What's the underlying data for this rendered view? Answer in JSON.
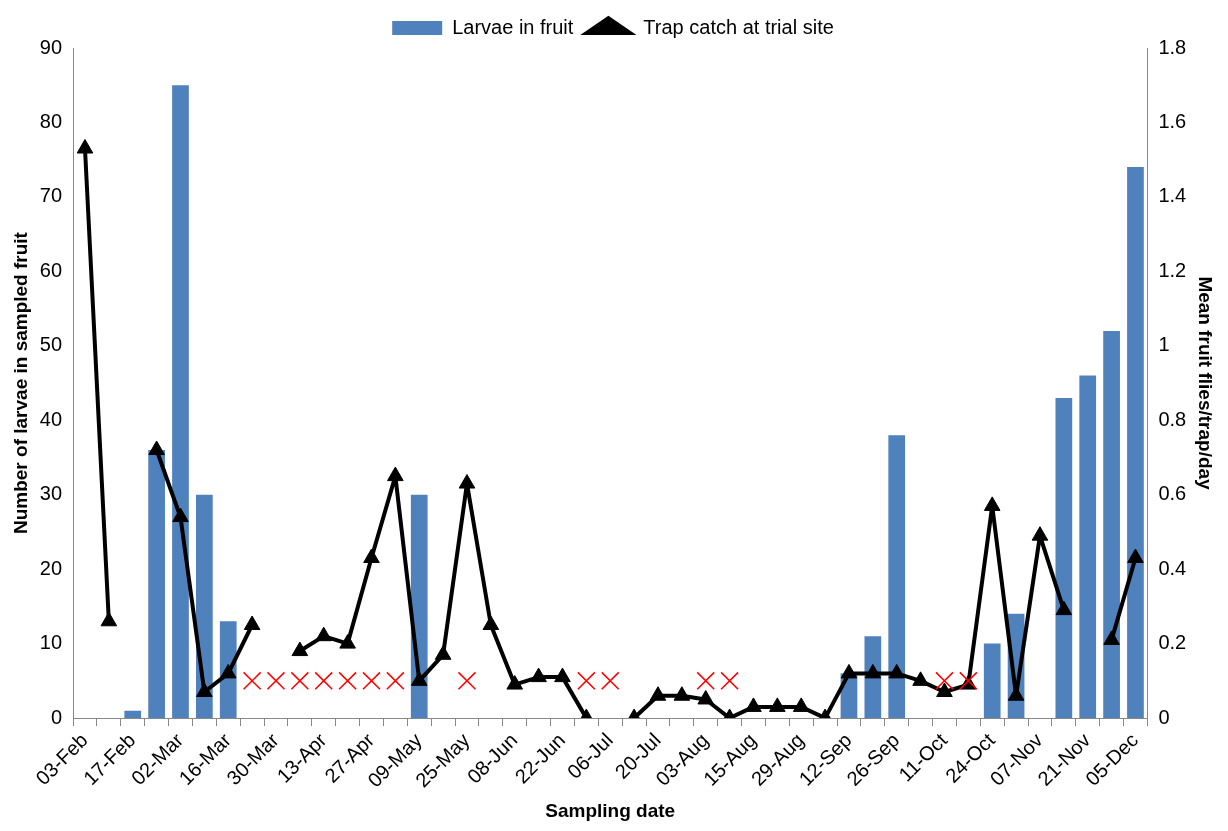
{
  "chart_data": {
    "type": "bar",
    "xlabel": "Sampling date",
    "ylabel": "Number of larvae in sampled fruit",
    "y2label": "Mean fruit flies/trap/day",
    "categories": [
      "03-Feb",
      null,
      "17-Feb",
      null,
      "02-Mar",
      null,
      "16-Mar",
      null,
      "30-Mar",
      null,
      "13-Apr",
      null,
      "27-Apr",
      null,
      "09-May",
      null,
      "25-May",
      null,
      "08-Jun",
      null,
      "22-Jun",
      null,
      "06-Jul",
      null,
      "20-Jul",
      null,
      "03-Aug",
      null,
      "15-Aug",
      null,
      "29-Aug",
      null,
      "12-Sep",
      null,
      "26-Sep",
      null,
      "11-Oct",
      null,
      "24-Oct",
      null,
      "07-Nov",
      null,
      "21-Nov",
      null,
      "05-Dec"
    ],
    "series": [
      {
        "name": "Larvae in fruit",
        "color": "#4f81bd",
        "values": [
          null,
          null,
          1,
          36,
          85,
          30,
          13,
          null,
          null,
          null,
          null,
          null,
          null,
          null,
          30,
          null,
          null,
          null,
          null,
          null,
          null,
          null,
          null,
          null,
          null,
          null,
          null,
          null,
          null,
          null,
          null,
          null,
          6,
          11,
          38,
          null,
          null,
          null,
          10,
          14,
          null,
          43,
          46,
          52,
          74
        ]
      },
      {
        "name": "Trap catch at trial site",
        "type": "line",
        "axis": "y2",
        "color": "#000000",
        "marker": "triangle",
        "values": [
          1.53,
          0.26,
          null,
          0.72,
          0.54,
          0.07,
          0.12,
          0.25,
          null,
          0.18,
          0.22,
          0.2,
          0.43,
          0.65,
          0.1,
          0.17,
          0.63,
          0.25,
          0.09,
          0.11,
          0.11,
          0,
          null,
          0,
          0.06,
          0.06,
          0.05,
          0,
          0.03,
          0.03,
          0.03,
          0,
          0.12,
          0.12,
          0.12,
          0.1,
          0.07,
          0.09,
          0.57,
          0.06,
          0.49,
          0.29,
          null,
          0.21,
          0.43
        ]
      },
      {
        "type": "scatter",
        "color": "#ff0000",
        "marker": "cross",
        "values": [
          null,
          null,
          null,
          null,
          null,
          null,
          null,
          5,
          5,
          5,
          5,
          5,
          5,
          5,
          null,
          null,
          5,
          null,
          null,
          null,
          null,
          5,
          5,
          null,
          null,
          null,
          5,
          5,
          null,
          null,
          null,
          null,
          null,
          null,
          null,
          null,
          5,
          5,
          null,
          null,
          null,
          null,
          null,
          null,
          null
        ]
      }
    ],
    "ylim": [
      0,
      90
    ],
    "yticks": [
      0,
      10,
      20,
      30,
      40,
      50,
      60,
      70,
      80,
      90
    ],
    "y2lim": [
      0,
      1.8
    ],
    "y2ticks": [
      0,
      0.2,
      0.4,
      0.6,
      0.8,
      1,
      1.2,
      1.4,
      1.6,
      1.8
    ],
    "grid": false,
    "legend": "top"
  }
}
